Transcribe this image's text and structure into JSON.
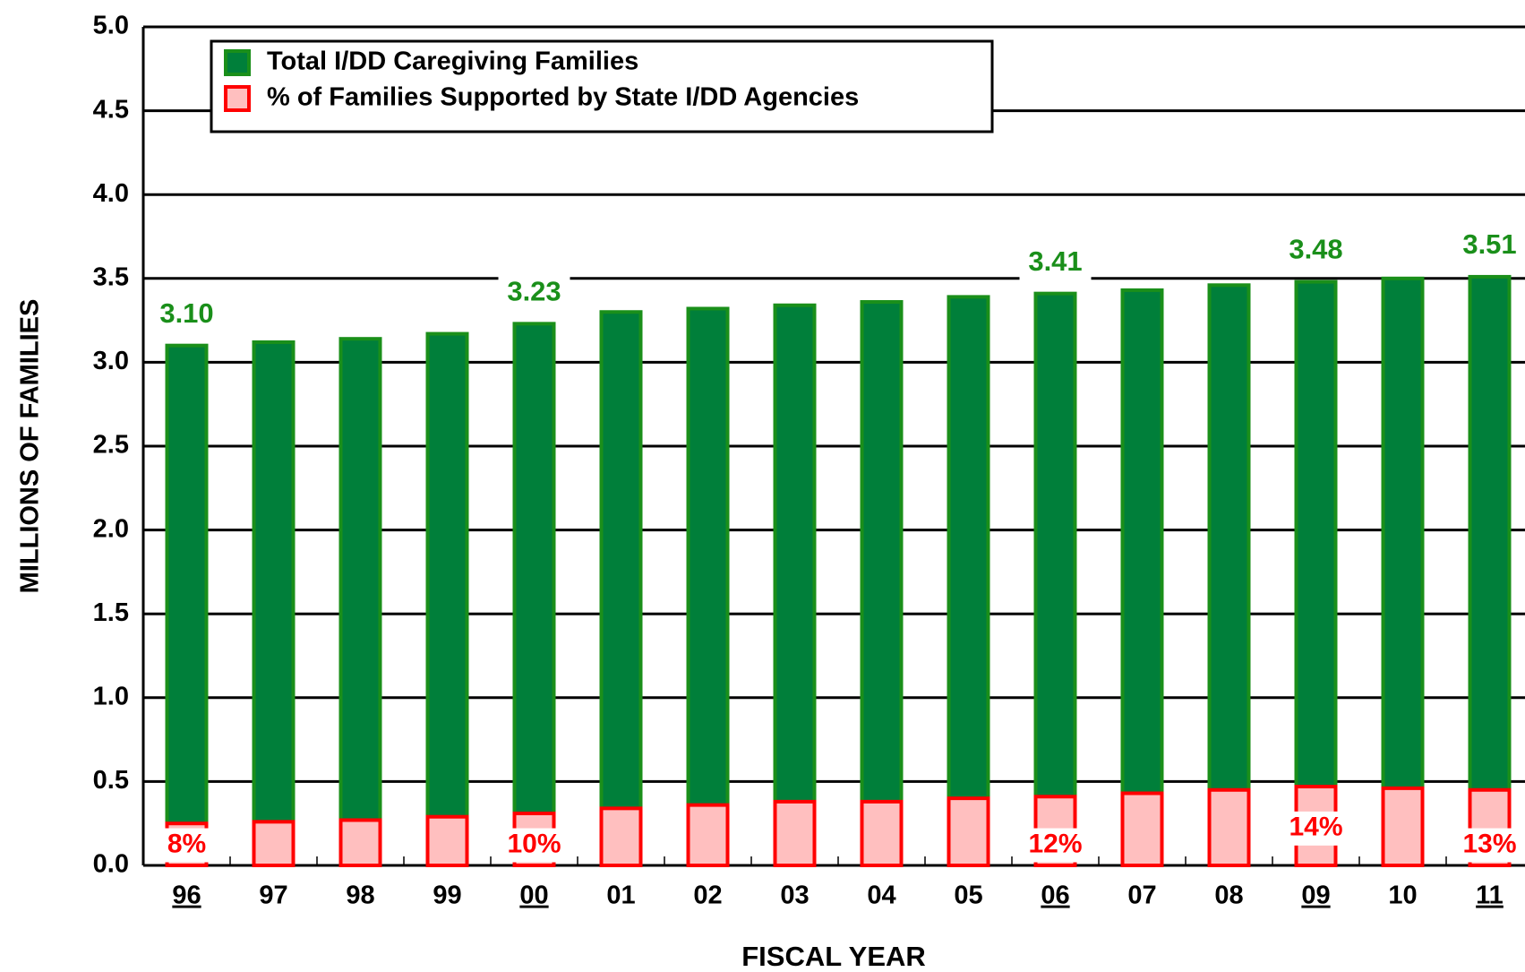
{
  "chart_data": {
    "type": "bar",
    "y_axis_label": "MILLIONS OF FAMILIES",
    "x_axis_label": "FISCAL YEAR",
    "categories": [
      "96",
      "97",
      "98",
      "99",
      "00",
      "01",
      "02",
      "03",
      "04",
      "05",
      "06",
      "07",
      "08",
      "09",
      "10",
      "11"
    ],
    "series": [
      {
        "name": "Total I/DD Caregiving Families",
        "color": "#007f3a",
        "edge_color": "#1a8f1a",
        "values": [
          3.1,
          3.12,
          3.14,
          3.17,
          3.23,
          3.3,
          3.32,
          3.34,
          3.36,
          3.39,
          3.41,
          3.43,
          3.46,
          3.48,
          3.5,
          3.51
        ],
        "value_labels": [
          "3.10",
          null,
          null,
          null,
          "3.23",
          null,
          null,
          null,
          null,
          null,
          "3.41",
          null,
          null,
          "3.48",
          null,
          "3.51"
        ]
      },
      {
        "name": "% of Families Supported by State I/DD Agencies",
        "color": "#ffbfbf",
        "edge_color": "#ff0000",
        "values": [
          0.25,
          0.26,
          0.27,
          0.29,
          0.31,
          0.34,
          0.36,
          0.38,
          0.38,
          0.4,
          0.41,
          0.43,
          0.45,
          0.47,
          0.46,
          0.45
        ],
        "percent_labels": [
          "8%",
          null,
          null,
          null,
          "10%",
          null,
          null,
          null,
          null,
          null,
          "12%",
          null,
          null,
          "14%",
          null,
          "13%"
        ]
      }
    ],
    "ylim": [
      0,
      5.0
    ],
    "yticks": [
      {
        "value": 0,
        "label": "0.0"
      },
      0.5,
      {
        "value": 1,
        "label": "1.0"
      },
      1.5,
      {
        "value": 2,
        "label": "2.0"
      },
      2.5,
      {
        "value": 3,
        "label": "3.0"
      },
      3.5,
      {
        "value": 4,
        "label": "4.0"
      },
      4.5,
      {
        "value": 5,
        "label": "5.0"
      }
    ],
    "grid": true,
    "legend": "upper left"
  }
}
